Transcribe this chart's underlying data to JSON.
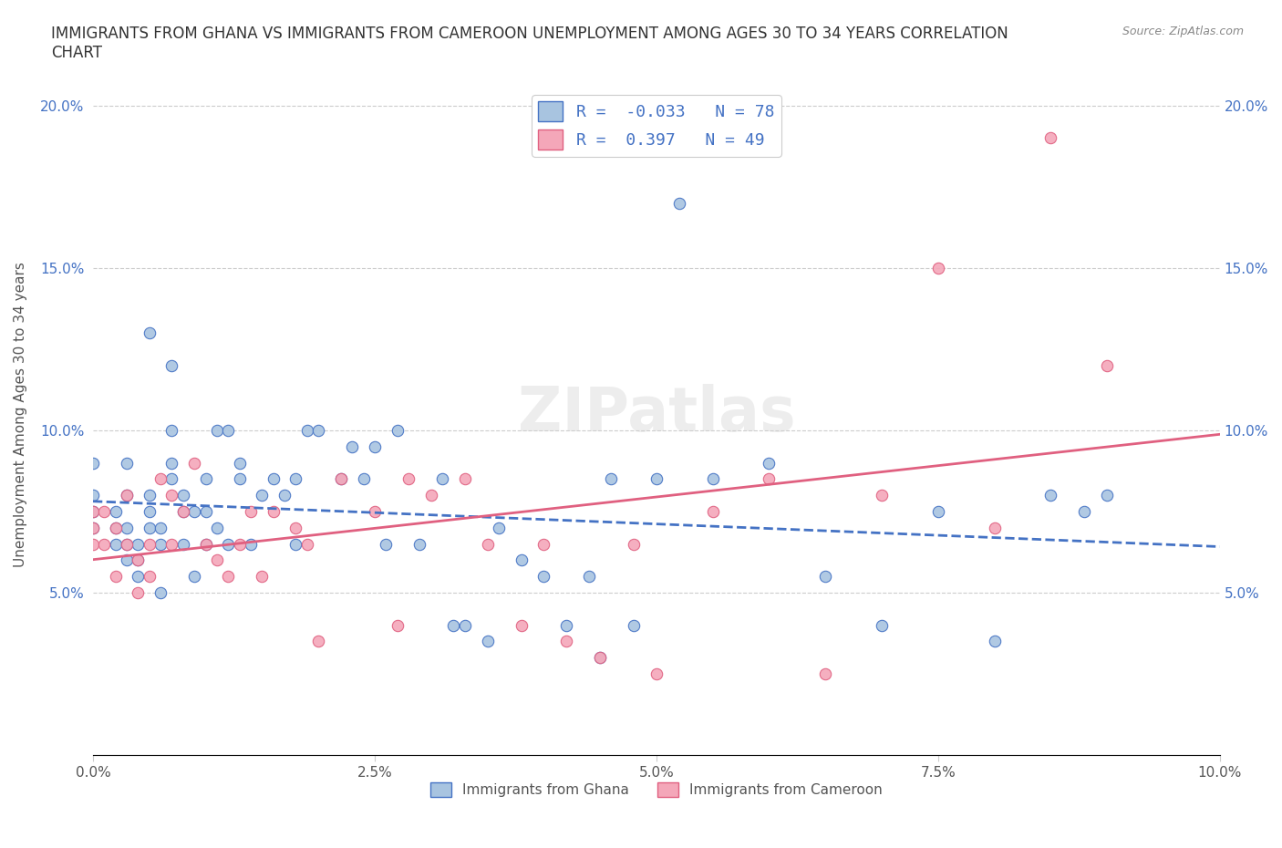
{
  "title": "IMMIGRANTS FROM GHANA VS IMMIGRANTS FROM CAMEROON UNEMPLOYMENT AMONG AGES 30 TO 34 YEARS CORRELATION\nCHART",
  "source_text": "Source: ZipAtlas.com",
  "xlabel": "",
  "ylabel": "Unemployment Among Ages 30 to 34 years",
  "xlim": [
    0.0,
    0.1
  ],
  "ylim": [
    0.0,
    0.21
  ],
  "xtick_labels": [
    "0.0%",
    "2.5%",
    "5.0%",
    "7.5%",
    "10.0%"
  ],
  "xtick_vals": [
    0.0,
    0.025,
    0.05,
    0.075,
    0.1
  ],
  "ytick_labels": [
    "5.0%",
    "10.0%",
    "15.0%",
    "20.0%"
  ],
  "ytick_vals": [
    0.05,
    0.1,
    0.15,
    0.2
  ],
  "ghana_color": "#a8c4e0",
  "cameroon_color": "#f4a7b9",
  "ghana_line_color": "#4472c4",
  "cameroon_line_color": "#e06080",
  "ghana_R": -0.033,
  "ghana_N": 78,
  "cameroon_R": 0.397,
  "cameroon_N": 49,
  "watermark": "ZIPatlas",
  "ghana_scatter_x": [
    0.0,
    0.0,
    0.0,
    0.0,
    0.002,
    0.002,
    0.002,
    0.003,
    0.003,
    0.003,
    0.003,
    0.003,
    0.004,
    0.004,
    0.004,
    0.005,
    0.005,
    0.005,
    0.005,
    0.006,
    0.006,
    0.006,
    0.007,
    0.007,
    0.007,
    0.007,
    0.008,
    0.008,
    0.008,
    0.009,
    0.009,
    0.01,
    0.01,
    0.01,
    0.011,
    0.011,
    0.012,
    0.012,
    0.013,
    0.013,
    0.014,
    0.015,
    0.016,
    0.017,
    0.018,
    0.018,
    0.019,
    0.02,
    0.022,
    0.023,
    0.024,
    0.025,
    0.026,
    0.027,
    0.029,
    0.031,
    0.032,
    0.033,
    0.035,
    0.036,
    0.038,
    0.04,
    0.042,
    0.044,
    0.045,
    0.046,
    0.048,
    0.05,
    0.052,
    0.055,
    0.06,
    0.065,
    0.07,
    0.075,
    0.08,
    0.085,
    0.088,
    0.09
  ],
  "ghana_scatter_y": [
    0.07,
    0.075,
    0.08,
    0.09,
    0.065,
    0.07,
    0.075,
    0.06,
    0.065,
    0.07,
    0.08,
    0.09,
    0.055,
    0.06,
    0.065,
    0.07,
    0.075,
    0.08,
    0.13,
    0.05,
    0.065,
    0.07,
    0.085,
    0.09,
    0.1,
    0.12,
    0.065,
    0.075,
    0.08,
    0.055,
    0.075,
    0.065,
    0.075,
    0.085,
    0.07,
    0.1,
    0.065,
    0.1,
    0.085,
    0.09,
    0.065,
    0.08,
    0.085,
    0.08,
    0.065,
    0.085,
    0.1,
    0.1,
    0.085,
    0.095,
    0.085,
    0.095,
    0.065,
    0.1,
    0.065,
    0.085,
    0.04,
    0.04,
    0.035,
    0.07,
    0.06,
    0.055,
    0.04,
    0.055,
    0.03,
    0.085,
    0.04,
    0.085,
    0.17,
    0.085,
    0.09,
    0.055,
    0.04,
    0.075,
    0.035,
    0.08,
    0.075,
    0.08
  ],
  "cameroon_scatter_x": [
    0.0,
    0.0,
    0.0,
    0.001,
    0.001,
    0.002,
    0.002,
    0.003,
    0.003,
    0.004,
    0.004,
    0.005,
    0.005,
    0.006,
    0.007,
    0.007,
    0.008,
    0.009,
    0.01,
    0.011,
    0.012,
    0.013,
    0.014,
    0.015,
    0.016,
    0.018,
    0.019,
    0.02,
    0.022,
    0.025,
    0.027,
    0.028,
    0.03,
    0.033,
    0.035,
    0.038,
    0.04,
    0.042,
    0.045,
    0.048,
    0.05,
    0.055,
    0.06,
    0.065,
    0.07,
    0.075,
    0.08,
    0.085,
    0.09
  ],
  "cameroon_scatter_y": [
    0.065,
    0.07,
    0.075,
    0.065,
    0.075,
    0.055,
    0.07,
    0.065,
    0.08,
    0.05,
    0.06,
    0.055,
    0.065,
    0.085,
    0.065,
    0.08,
    0.075,
    0.09,
    0.065,
    0.06,
    0.055,
    0.065,
    0.075,
    0.055,
    0.075,
    0.07,
    0.065,
    0.035,
    0.085,
    0.075,
    0.04,
    0.085,
    0.08,
    0.085,
    0.065,
    0.04,
    0.065,
    0.035,
    0.03,
    0.065,
    0.025,
    0.075,
    0.085,
    0.025,
    0.08,
    0.15,
    0.07,
    0.19,
    0.12
  ]
}
